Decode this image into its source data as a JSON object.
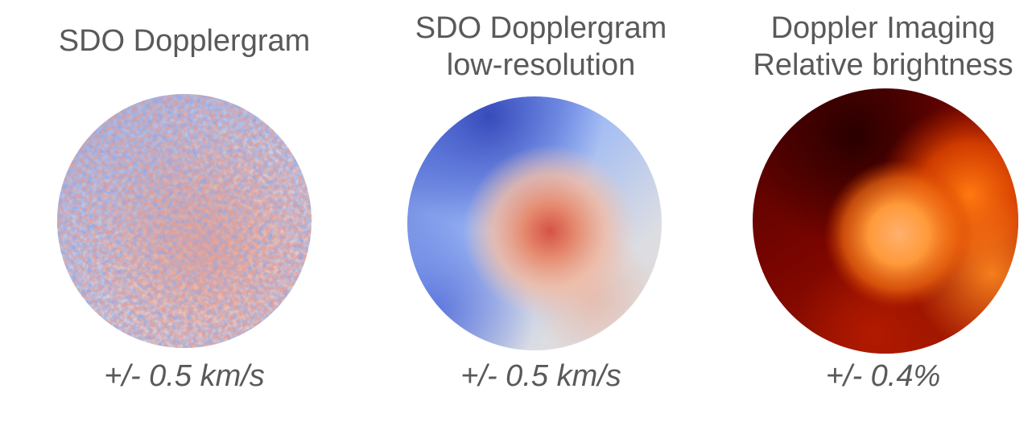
{
  "panels": [
    {
      "title_lines": [
        "SDO Dopplergram"
      ],
      "scale": "+/- 0.5 km/s",
      "colormap": "coolwarm"
    },
    {
      "title_lines": [
        "SDO Dopplergram",
        "low-resolution"
      ],
      "scale": "+/- 0.5 km/s",
      "colormap": "coolwarm"
    },
    {
      "title_lines": [
        "Doppler Imaging",
        "Relative brightness"
      ],
      "scale": "+/- 0.4%",
      "colormap": "gist_heat"
    }
  ],
  "colors": {
    "text": "#595959",
    "blue": "#3b4cc0",
    "light_blue": "#9fbfff",
    "neutral": "#dddddd",
    "light_red": "#f4a484",
    "red": "#d0473d",
    "dark_red": "#5a0000",
    "orange": "#ff8a1a",
    "peach": "#ffae6a"
  }
}
